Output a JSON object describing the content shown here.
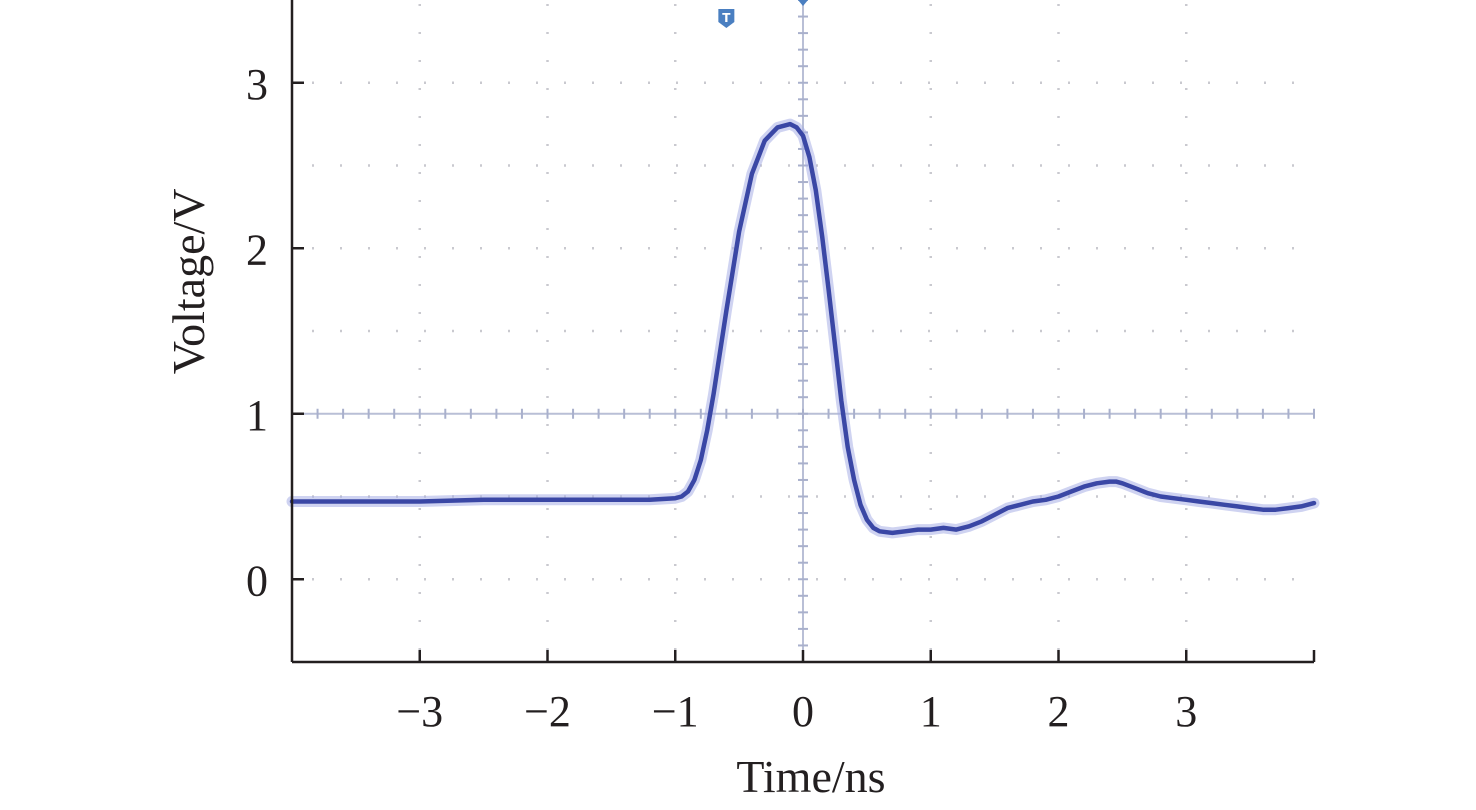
{
  "chart_data": {
    "type": "line",
    "xlabel": "Time/ns",
    "ylabel": "Voltage/V",
    "xlim": [
      -4,
      4
    ],
    "ylim": [
      -0.5,
      3.5
    ],
    "xticks": [
      -3,
      -2,
      -1,
      0,
      1,
      2,
      3
    ],
    "xtick_labels": [
      "−3",
      "−2",
      "−1",
      "0",
      "1",
      "2",
      "3"
    ],
    "yticks": [
      0,
      1,
      2,
      3
    ],
    "ytick_labels": [
      "0",
      "1",
      "2",
      "3"
    ],
    "grid": "dotted",
    "reference_lines": {
      "x": 0,
      "y": 1
    },
    "trigger_marker": {
      "x": -0.6,
      "glyph": "T"
    },
    "series": [
      {
        "color": "#3a47a5",
        "x": [
          -4.0,
          -3.5,
          -3.0,
          -2.5,
          -2.0,
          -1.5,
          -1.2,
          -1.0,
          -0.95,
          -0.9,
          -0.85,
          -0.8,
          -0.75,
          -0.7,
          -0.6,
          -0.5,
          -0.4,
          -0.3,
          -0.2,
          -0.1,
          -0.05,
          0.0,
          0.05,
          0.1,
          0.15,
          0.2,
          0.25,
          0.3,
          0.35,
          0.4,
          0.45,
          0.5,
          0.55,
          0.6,
          0.7,
          0.8,
          0.9,
          1.0,
          1.1,
          1.2,
          1.3,
          1.4,
          1.5,
          1.6,
          1.7,
          1.8,
          1.9,
          2.0,
          2.1,
          2.2,
          2.3,
          2.4,
          2.45,
          2.5,
          2.6,
          2.7,
          2.8,
          2.9,
          3.0,
          3.1,
          3.2,
          3.3,
          3.4,
          3.5,
          3.6,
          3.7,
          3.8,
          3.9,
          4.0
        ],
        "y": [
          0.47,
          0.47,
          0.47,
          0.48,
          0.48,
          0.48,
          0.48,
          0.49,
          0.5,
          0.53,
          0.6,
          0.72,
          0.9,
          1.12,
          1.62,
          2.1,
          2.45,
          2.65,
          2.73,
          2.75,
          2.73,
          2.68,
          2.55,
          2.35,
          2.07,
          1.75,
          1.42,
          1.08,
          0.8,
          0.6,
          0.45,
          0.36,
          0.31,
          0.29,
          0.28,
          0.29,
          0.3,
          0.3,
          0.31,
          0.3,
          0.32,
          0.35,
          0.39,
          0.43,
          0.45,
          0.47,
          0.48,
          0.5,
          0.53,
          0.56,
          0.58,
          0.59,
          0.59,
          0.58,
          0.55,
          0.52,
          0.5,
          0.49,
          0.48,
          0.47,
          0.46,
          0.45,
          0.44,
          0.43,
          0.42,
          0.42,
          0.43,
          0.44,
          0.46
        ]
      }
    ]
  }
}
